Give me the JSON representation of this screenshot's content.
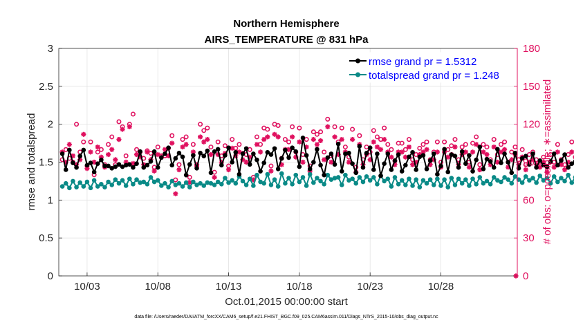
{
  "chart_data": {
    "type": "line",
    "title": "Northern Hemisphere",
    "subtitle": "AIRS_TEMPERATURE @ 831 hPa",
    "xlabel": "Oct.01,2015 00:00:00 start",
    "ylabel_left": "rmse and totalspread",
    "ylabel_right": "# of obs: o=possible; ∗=assimilated",
    "footnote": "data file: /Users/raeder/DAI/ATM_forcXX/CAM6_setup/f.e21.FHIST_BGC.f09_025.CAM6assim.011/Diags_NTrS_2015-10/obs_diag_output.nc",
    "x_range_days": [
      1.0,
      33.4
    ],
    "x_ticks": [
      3,
      8,
      13,
      18,
      23,
      28
    ],
    "x_tick_labels": [
      "10/03",
      "10/08",
      "10/13",
      "10/18",
      "10/23",
      "10/28"
    ],
    "ylim_left": [
      0,
      3
    ],
    "y_ticks_left": [
      "0",
      "0.5",
      "1",
      "1.5",
      "2",
      "2.5",
      "3"
    ],
    "ylim_right": [
      0,
      180
    ],
    "y_ticks_right": [
      "0",
      "30",
      "60",
      "90",
      "120",
      "150",
      "180"
    ],
    "grid": true,
    "legend_position": "top-right",
    "series": [
      {
        "name": "rmse",
        "legend": "rmse grand pr = 1.5312",
        "color": "#000000",
        "marker": "filled-circle",
        "x_start": 1.25,
        "x_step": 0.25,
        "values": [
          1.61,
          1.4,
          1.66,
          1.49,
          1.43,
          1.58,
          1.66,
          1.46,
          1.49,
          1.37,
          1.48,
          1.53,
          1.45,
          1.45,
          1.42,
          1.44,
          1.47,
          1.44,
          1.46,
          1.47,
          1.43,
          1.48,
          1.64,
          1.43,
          1.46,
          1.51,
          1.64,
          1.43,
          1.56,
          1.61,
          1.69,
          1.46,
          1.55,
          1.62,
          1.57,
          1.33,
          1.47,
          1.59,
          1.42,
          1.62,
          1.58,
          1.65,
          1.36,
          1.64,
          1.67,
          1.46,
          1.59,
          1.69,
          1.5,
          1.63,
          1.34,
          1.61,
          1.68,
          1.47,
          1.61,
          1.53,
          1.38,
          1.49,
          1.63,
          1.6,
          1.68,
          1.41,
          1.55,
          1.66,
          1.56,
          1.69,
          1.64,
          1.44,
          1.82,
          1.59,
          1.41,
          1.5,
          1.67,
          1.46,
          1.33,
          1.56,
          1.61,
          1.47,
          1.74,
          1.38,
          1.61,
          1.62,
          1.48,
          1.36,
          1.71,
          1.43,
          1.62,
          1.69,
          1.4,
          1.61,
          1.32,
          1.48,
          1.61,
          1.4,
          1.52,
          1.6,
          1.38,
          1.46,
          1.57,
          1.63,
          1.4,
          1.57,
          1.59,
          1.41,
          1.52,
          1.61,
          1.34,
          1.45,
          1.67,
          1.37,
          1.6,
          1.58,
          1.43,
          1.64,
          1.48,
          1.59,
          1.38,
          1.53,
          1.7,
          1.41,
          1.54,
          1.51,
          1.43,
          1.67,
          1.49,
          1.61,
          1.5,
          1.36,
          1.62,
          1.42,
          1.55,
          1.58,
          1.47,
          1.61,
          1.43,
          1.52,
          1.46,
          1.44,
          1.51,
          1.61,
          1.46,
          1.52,
          1.6,
          1.43,
          1.48,
          1.51,
          1.42,
          1.4,
          1.48,
          1.58,
          1.63,
          1.48,
          1.4,
          1.42,
          1.49,
          1.53,
          1.43,
          1.56,
          1.48,
          1.42,
          1.52,
          1.56,
          1.43,
          1.58,
          1.49,
          1.46,
          1.59,
          1.44,
          1.63,
          1.4,
          1.56,
          1.47,
          1.42,
          1.66,
          1.61,
          1.38,
          1.59,
          1.46,
          1.53,
          1.58,
          1.46,
          1.52,
          1.61,
          1.41,
          1.73,
          1.49,
          1.44,
          1.66,
          1.58,
          1.7,
          1.47,
          1.58,
          1.79,
          1.49,
          1.55,
          1.64,
          1.45,
          1.7,
          1.6,
          1.51,
          1.66,
          1.41,
          1.65,
          1.55,
          1.48,
          1.66,
          1.58,
          1.68,
          1.42,
          1.38
        ],
        "y_axis": "left"
      },
      {
        "name": "totalspread",
        "legend": "totalspread grand pr = 1.248",
        "color": "#0a8a87",
        "marker": "filled-circle",
        "x_start": 1.25,
        "x_step": 0.25,
        "values": [
          1.18,
          1.22,
          1.16,
          1.25,
          1.17,
          1.23,
          1.18,
          1.24,
          1.16,
          1.26,
          1.18,
          1.21,
          1.17,
          1.24,
          1.2,
          1.27,
          1.22,
          1.26,
          1.19,
          1.28,
          1.21,
          1.27,
          1.23,
          1.24,
          1.21,
          1.3,
          1.24,
          1.26,
          1.19,
          1.22,
          1.17,
          1.25,
          1.2,
          1.22,
          1.18,
          1.23,
          1.17,
          1.24,
          1.2,
          1.22,
          1.19,
          1.23,
          1.22,
          1.2,
          1.24,
          1.21,
          1.29,
          1.23,
          1.26,
          1.22,
          1.31,
          1.25,
          1.2,
          1.28,
          1.19,
          1.33,
          1.24,
          1.22,
          1.34,
          1.2,
          1.27,
          1.18,
          1.35,
          1.22,
          1.29,
          1.21,
          1.33,
          1.24,
          1.3,
          1.19,
          1.34,
          1.23,
          1.29,
          1.25,
          1.21,
          1.33,
          1.27,
          1.29,
          1.3,
          1.2,
          1.33,
          1.26,
          1.28,
          1.22,
          1.3,
          1.24,
          1.31,
          1.26,
          1.3,
          1.21,
          1.32,
          1.25,
          1.28,
          1.18,
          1.3,
          1.21,
          1.26,
          1.2,
          1.28,
          1.19,
          1.27,
          1.17,
          1.26,
          1.22,
          1.27,
          1.2,
          1.28,
          1.19,
          1.27,
          1.17,
          1.29,
          1.2,
          1.28,
          1.22,
          1.27,
          1.19,
          1.28,
          1.21,
          1.3,
          1.22,
          1.25,
          1.21,
          1.3,
          1.26,
          1.24,
          1.3,
          1.27,
          1.22,
          1.31,
          1.27,
          1.23,
          1.31,
          1.26,
          1.29,
          1.23,
          1.32,
          1.26,
          1.29,
          1.22,
          1.31,
          1.24,
          1.29,
          1.25,
          1.33,
          1.23,
          1.3,
          1.21,
          1.26,
          1.24,
          1.21,
          1.28,
          1.23,
          1.2,
          1.27,
          1.24,
          1.22,
          1.27,
          1.25,
          1.28,
          1.26,
          1.29,
          1.27,
          1.3,
          1.26,
          1.29,
          1.25,
          1.27,
          1.3,
          1.26,
          1.31,
          1.28,
          1.25,
          1.3,
          1.27,
          1.23,
          1.29,
          1.27,
          1.25,
          1.3,
          1.28,
          1.24,
          1.3,
          1.27,
          1.24,
          1.31,
          1.28,
          1.23,
          1.3,
          1.29,
          1.24,
          1.31,
          1.27,
          1.22,
          1.29,
          1.26,
          1.28,
          1.31,
          1.26,
          1.3,
          1.25,
          1.28,
          1.24,
          1.3,
          1.27,
          1.23
        ],
        "y_axis": "left"
      },
      {
        "name": "obs possible",
        "color": "#e0115f",
        "marker": "open-circle",
        "x_start": 1.25,
        "x_step": 0.25,
        "values": [
          92,
          100,
          93,
          90,
          120,
          98,
          106,
          87,
          106,
          80,
          98,
          100,
          88,
          104,
          110,
          88,
          122,
          118,
          95,
          120,
          128,
          100,
          98,
          93,
          99,
          97,
          86,
          102,
          95,
          95,
          101,
          111,
          76,
          88,
          108,
          110,
          78,
          104,
          87,
          120,
          115,
          117,
          102,
          82,
          106,
          95,
          103,
          87,
          108,
          101,
          104,
          97,
          96,
          100,
          78,
          110,
          104,
          117,
          116,
          87,
          120,
          119,
          93,
          108,
          106,
          118,
          98,
          117,
          96,
          108,
          87,
          114,
          112,
          114,
          98,
          124,
          95,
          118,
          106,
          117,
          102,
          94,
          116,
          86,
          111,
          92,
          102,
          98,
          115,
          110,
          108,
          117,
          104,
          100,
          91,
          105,
          105,
          100,
          108,
          92,
          96,
          101,
          104,
          106,
          92,
          98,
          106,
          90,
          106,
          100,
          103,
          108,
          92,
          102,
          104,
          90,
          105,
          110,
          88,
          104,
          102,
          92,
          108,
          96,
          104,
          106,
          90,
          98,
          102,
          92,
          100,
          88,
          96,
          98,
          92,
          90,
          94,
          86,
          96,
          90,
          104,
          92,
          88,
          96,
          106,
          94,
          84,
          98,
          100,
          90,
          92,
          88,
          106,
          94,
          90,
          98,
          86,
          92,
          68,
          88,
          94,
          96,
          98,
          94,
          92,
          88,
          90,
          82,
          96,
          56,
          94,
          92,
          84,
          98,
          88,
          88,
          55,
          92,
          64,
          88,
          94,
          92,
          96,
          90,
          104,
          84,
          88,
          56,
          96,
          92,
          100,
          88,
          98,
          92,
          84,
          100,
          94,
          90,
          96,
          92,
          98,
          104,
          88,
          98,
          92,
          84,
          96,
          94,
          88,
          96,
          92,
          100
        ],
        "y_axis": "right"
      },
      {
        "name": "obs assimilated",
        "color": "#e0115f",
        "marker": "asterisk",
        "x_start": 1.25,
        "x_step": 0.25,
        "values": [
          98,
          90,
          104,
          95,
          88,
          92,
          112,
          85,
          98,
          90,
          102,
          94,
          86,
          96,
          100,
          92,
          108,
          116,
          90,
          118,
          89,
          96,
          94,
          88,
          98,
          92,
          83,
          96,
          94,
          100,
          95,
          105,
          65,
          84,
          102,
          104,
          74,
          98,
          88,
          110,
          106,
          108,
          96,
          78,
          96,
          90,
          97,
          84,
          101,
          95,
          98,
          92,
          90,
          94,
          76,
          104,
          98,
          108,
          110,
          83,
          112,
          110,
          88,
          100,
          100,
          110,
          94,
          106,
          90,
          102,
          83,
          108,
          104,
          107,
          92,
          118,
          90,
          110,
          96,
          108,
          98,
          90,
          108,
          82,
          104,
          88,
          96,
          92,
          106,
          102,
          100,
          108,
          98,
          94,
          88,
          98,
          98,
          94,
          102,
          88,
          90,
          96,
          98,
          100,
          88,
          92,
          98,
          86,
          98,
          94,
          96,
          102,
          88,
          96,
          98,
          86,
          98,
          104,
          84,
          98,
          96,
          88,
          102,
          90,
          98,
          100,
          86,
          92,
          96,
          88,
          94,
          84,
          90,
          92,
          88,
          86,
          90,
          82,
          90,
          86,
          98,
          88,
          84,
          90,
          98,
          90,
          82,
          92,
          94,
          86,
          88,
          84,
          98,
          90,
          86,
          92,
          82,
          88,
          58,
          84,
          90,
          90,
          92,
          90,
          88,
          84,
          86,
          80,
          90,
          53,
          88,
          88,
          80,
          92,
          84,
          84,
          53,
          88,
          90,
          84,
          90,
          88,
          90,
          86,
          98,
          80,
          84,
          86,
          90,
          88,
          94,
          84,
          92,
          88,
          80,
          94,
          90,
          86,
          92,
          88,
          92,
          96,
          84,
          92,
          88,
          80,
          90,
          90,
          84,
          92,
          88,
          92
        ],
        "y_axis": "right"
      }
    ]
  }
}
